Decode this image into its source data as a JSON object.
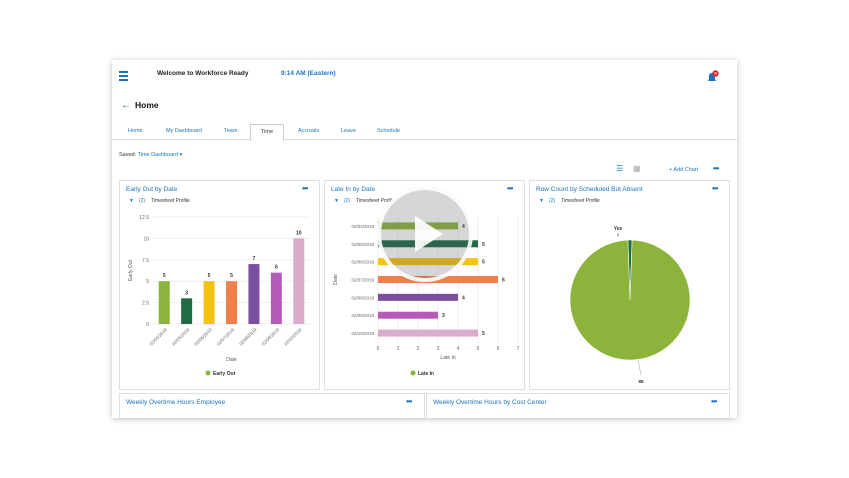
{
  "header": {
    "title": "Welcome to Workforce Ready",
    "time": "9:14 AM (Eastern)",
    "notif_count": "99"
  },
  "page": {
    "title": "Home"
  },
  "tabs": [
    "Home",
    "My Dashboard",
    "Team",
    "Time",
    "Accruals",
    "Leave",
    "Schedule"
  ],
  "active_tab": "Time",
  "saved": {
    "label": "Saved:",
    "value": "Time Dashboard"
  },
  "toolbar": {
    "add_chart": "+ Add Chart"
  },
  "cards": {
    "c1": {
      "title": "Early Out by Date",
      "filter_count": "(2)",
      "filter_name": "Timesheet Profile"
    },
    "c2": {
      "title": "Late In by Date",
      "filter_count": "(2)",
      "filter_name": "Timesheet Profile"
    },
    "c3": {
      "title": "Row Count by Scheduled But Absent",
      "filter_count": "(2)",
      "filter_name": "Timesheet Profile"
    },
    "c4": {
      "title": "Weekly Overtime Hours Employee"
    },
    "c5": {
      "title": "Weekly Overtime Hours by Cost Center"
    }
  },
  "chart_data": [
    {
      "type": "bar",
      "title": "Early Out by Date",
      "categories": [
        "02/04/2019",
        "02/05/2019",
        "02/06/2019",
        "02/07/2019",
        "02/08/2019",
        "02/09/2019",
        "02/10/2019"
      ],
      "values": [
        5,
        3,
        5,
        5,
        7,
        6,
        10
      ],
      "colors": [
        "#8cb43c",
        "#1e6b46",
        "#f2c314",
        "#f07f4b",
        "#7a4fa0",
        "#b45cb8",
        "#dcaacb"
      ],
      "xlabel": "Date",
      "ylabel": "Early Out",
      "ylim": [
        0,
        12.5
      ],
      "yticks": [
        "0",
        "2.5",
        "5",
        "7.5",
        "10",
        "12.5"
      ],
      "legend": "Early Out",
      "legend_color": "#8cb43c"
    },
    {
      "type": "bar",
      "orientation": "horizontal",
      "title": "Late In by Date",
      "categories": [
        "02/04/2019",
        "02/05/2019",
        "02/06/2019",
        "02/07/2019",
        "02/08/2019",
        "02/09/2019",
        "02/10/2019"
      ],
      "values": [
        4,
        5,
        5,
        6,
        4,
        3,
        5
      ],
      "colors": [
        "#8cb43c",
        "#1e6b46",
        "#f2c314",
        "#f07f4b",
        "#7a4fa0",
        "#b45cb8",
        "#dcaacb"
      ],
      "xlabel": "Late In",
      "ylabel": "Date",
      "xlim": [
        0,
        7
      ],
      "xticks": [
        "0",
        "1",
        "2",
        "3",
        "4",
        "5",
        "6",
        "7"
      ],
      "legend": "Late In",
      "legend_color": "#8cb43c"
    },
    {
      "type": "pie",
      "title": "Row Count by Scheduled But Absent",
      "slices": [
        {
          "label": "No",
          "value": 88,
          "color": "#8cb43c"
        },
        {
          "label": "Yes",
          "value": 1,
          "color": "#1e6b46"
        }
      ]
    }
  ]
}
